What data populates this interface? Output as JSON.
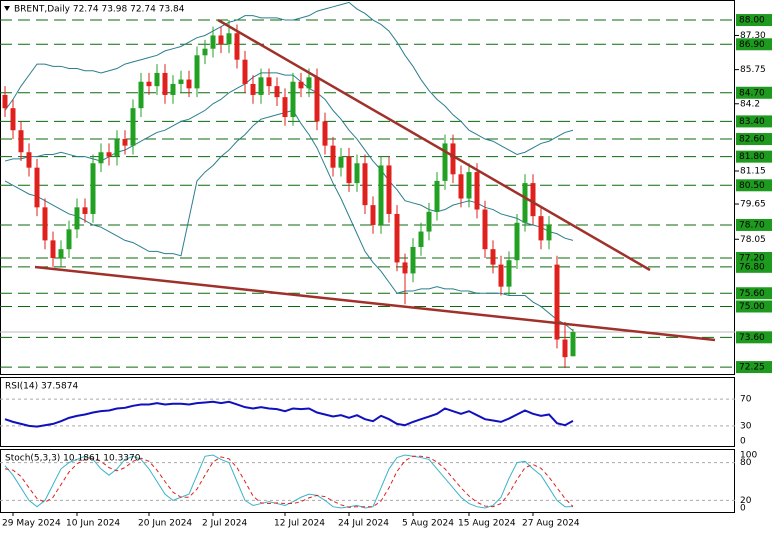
{
  "chart_data": [
    {
      "type": "candlestick",
      "title": "BRENT,Daily  72.74 73.98 72.74 73.84",
      "categories": [
        null,
        "29 May 2024",
        null,
        null,
        null,
        null,
        null,
        null,
        null,
        "10 Jun 2024",
        null,
        null,
        null,
        null,
        null,
        null,
        null,
        null,
        "20 Jun 2024",
        null,
        null,
        null,
        null,
        null,
        null,
        null,
        "2 Jul 2024",
        null,
        null,
        null,
        null,
        null,
        null,
        null,
        null,
        "12 Jul 2024",
        null,
        null,
        null,
        null,
        null,
        null,
        null,
        "24 Jul 2024",
        null,
        null,
        null,
        null,
        null,
        null,
        null,
        "5 Aug 2024",
        null,
        null,
        null,
        null,
        null,
        null,
        "15 Aug 2024",
        null,
        null,
        null,
        null,
        null,
        null,
        null,
        "27 Aug 2024",
        null,
        null,
        null,
        null,
        null
      ],
      "open": [
        84.6,
        84.0,
        83.0,
        82.0,
        81.3,
        79.5,
        78.0,
        77.2,
        77.6,
        78.5,
        79.5,
        79.2,
        81.5,
        82.0,
        81.8,
        82.6,
        82.3,
        84.0,
        85.2,
        85.0,
        85.6,
        84.6,
        85.1,
        85.3,
        84.9,
        86.4,
        86.7,
        87.3,
        86.9,
        87.4,
        86.2,
        85.1,
        84.6,
        85.4,
        85.0,
        84.5,
        83.6,
        85.2,
        84.9,
        85.4,
        83.4,
        82.3,
        81.3,
        81.8,
        80.6,
        81.5,
        79.6,
        78.7,
        81.4,
        79.2,
        77.0,
        76.5,
        77.7,
        78.4,
        79.3,
        80.7,
        82.4,
        81.0,
        79.9,
        81.1,
        79.4,
        77.6,
        76.9,
        75.9,
        77.1,
        78.8,
        80.6,
        79.1,
        78.0,
        76.9,
        73.5,
        72.74
      ],
      "high": [
        85.0,
        84.4,
        83.4,
        82.4,
        81.7,
        79.9,
        78.4,
        78.0,
        78.9,
        79.9,
        79.9,
        81.9,
        82.4,
        82.4,
        83.0,
        83.0,
        84.4,
        85.6,
        85.6,
        86.0,
        86.0,
        85.5,
        85.7,
        85.7,
        86.8,
        87.1,
        87.7,
        87.7,
        88.0,
        87.8,
        86.6,
        85.5,
        85.8,
        85.8,
        85.4,
        84.9,
        85.6,
        85.6,
        85.8,
        85.8,
        83.8,
        82.7,
        82.2,
        82.2,
        81.9,
        81.9,
        80.0,
        81.8,
        81.8,
        79.6,
        77.4,
        78.1,
        78.8,
        79.7,
        81.1,
        82.8,
        82.8,
        81.4,
        81.5,
        81.5,
        79.8,
        78.0,
        77.3,
        77.5,
        79.2,
        81.0,
        81.0,
        79.5,
        79.1,
        77.3,
        74.3,
        73.98
      ],
      "low": [
        83.6,
        82.6,
        81.6,
        80.9,
        79.1,
        77.6,
        76.8,
        76.8,
        77.2,
        78.1,
        78.8,
        78.8,
        81.1,
        81.4,
        81.4,
        81.9,
        81.9,
        83.6,
        84.6,
        84.6,
        84.2,
        84.2,
        84.7,
        84.5,
        84.5,
        86.0,
        86.3,
        86.5,
        86.5,
        85.8,
        84.7,
        84.2,
        84.2,
        84.6,
        84.1,
        83.2,
        83.2,
        84.5,
        84.5,
        83.0,
        81.9,
        80.9,
        80.9,
        80.2,
        80.2,
        79.2,
        78.3,
        78.3,
        78.8,
        76.6,
        75.1,
        76.1,
        77.3,
        78.0,
        78.9,
        80.3,
        80.6,
        79.5,
        79.5,
        79.0,
        77.2,
        76.5,
        75.5,
        75.5,
        76.7,
        78.4,
        78.7,
        77.6,
        77.6,
        73.1,
        72.2,
        72.74
      ],
      "close": [
        84.0,
        83.0,
        82.0,
        81.3,
        79.5,
        78.0,
        77.2,
        77.6,
        78.5,
        79.5,
        79.2,
        81.5,
        82.0,
        81.8,
        82.6,
        82.3,
        84.0,
        85.2,
        85.0,
        85.6,
        84.6,
        85.1,
        85.3,
        84.9,
        86.4,
        86.7,
        87.3,
        86.9,
        87.4,
        86.2,
        85.1,
        84.6,
        85.4,
        85.0,
        84.5,
        83.6,
        85.2,
        84.9,
        85.4,
        83.4,
        82.3,
        81.3,
        81.8,
        80.6,
        81.5,
        79.6,
        78.7,
        81.4,
        79.2,
        77.0,
        76.5,
        77.7,
        78.4,
        79.3,
        80.7,
        82.4,
        81.0,
        79.9,
        81.1,
        79.4,
        77.6,
        76.9,
        75.9,
        77.1,
        78.8,
        80.6,
        79.1,
        78.0,
        78.7,
        73.5,
        72.7,
        73.84
      ],
      "up_color": "#22a022",
      "down_color": "#e0201c",
      "bands": [
        {
          "color": "#2b7f8e",
          "values": [
            83.9,
            84.4,
            85.0,
            85.5,
            86.0,
            86.0,
            85.9,
            85.9,
            85.8,
            85.8,
            85.7,
            85.7,
            85.6,
            85.7,
            85.8,
            86.0,
            86.1,
            86.2,
            86.3,
            86.4,
            86.6,
            86.7,
            86.8,
            87.0,
            87.2,
            87.3,
            87.5,
            87.7,
            87.9,
            88.0,
            88.2,
            88.2,
            88.1,
            88.1,
            88.1,
            88.0,
            88.0,
            88.1,
            88.2,
            88.4,
            88.5,
            88.6,
            88.7,
            88.8,
            88.5,
            88.3,
            88.0,
            87.8,
            87.5,
            87.0,
            86.4,
            85.9,
            85.3,
            84.8,
            84.4,
            84.1,
            83.7,
            83.4,
            83.0,
            82.8,
            82.6,
            82.5,
            82.3,
            82.1,
            81.9,
            82.0,
            82.2,
            82.4,
            82.5,
            82.7,
            82.9,
            83.0
          ]
        },
        {
          "color": "#2b7f8e",
          "values": [
            81.6,
            81.7,
            81.7,
            81.8,
            81.8,
            81.9,
            81.9,
            82.0,
            81.9,
            81.8,
            81.8,
            81.7,
            81.6,
            81.8,
            82.0,
            82.1,
            82.3,
            82.5,
            82.7,
            82.9,
            83.0,
            83.2,
            83.4,
            83.5,
            83.7,
            83.9,
            84.2,
            84.4,
            84.7,
            84.9,
            85.1,
            85.4,
            85.6,
            85.6,
            85.6,
            85.5,
            85.5,
            85.2,
            84.9,
            84.7,
            84.4,
            83.9,
            83.5,
            83.0,
            82.6,
            82.1,
            81.6,
            81.2,
            80.7,
            80.3,
            79.8,
            79.7,
            79.6,
            79.4,
            79.3,
            79.4,
            79.6,
            79.7,
            79.8,
            79.7,
            79.5,
            79.4,
            79.2,
            79.1,
            79.0,
            78.8,
            78.7,
            78.6,
            78.4,
            78.3,
            78.1,
            78.0
          ]
        },
        {
          "color": "#2b7f8e",
          "values": [
            80.7,
            80.5,
            80.3,
            80.1,
            80.0,
            79.8,
            79.6,
            79.4,
            79.2,
            79.1,
            78.9,
            78.7,
            78.6,
            78.4,
            78.2,
            78.0,
            77.9,
            77.7,
            77.5,
            77.5,
            77.4,
            77.4,
            77.3,
            79.0,
            80.7,
            81.1,
            81.4,
            81.8,
            82.1,
            82.5,
            82.8,
            83.2,
            83.5,
            83.6,
            83.7,
            83.8,
            83.9,
            83.3,
            82.8,
            82.2,
            81.4,
            80.6,
            79.9,
            79.1,
            78.3,
            77.5,
            77.0,
            76.6,
            76.1,
            75.6,
            75.7,
            75.7,
            75.8,
            75.8,
            75.9,
            75.8,
            75.8,
            75.7,
            75.7,
            75.6,
            75.6,
            75.6,
            75.6,
            75.5,
            75.5,
            75.5,
            75.2,
            75.0,
            74.7,
            74.4,
            74.2,
            73.9
          ]
        }
      ],
      "ylim": [
        71.89,
        88.91
      ],
      "yticks": [
        {
          "value": 87.3,
          "label": "87.30"
        },
        85.75,
        84.2,
        81.15,
        79.65,
        78.05
      ],
      "levels": [
        {
          "value": 88,
          "label": "88.00"
        },
        {
          "value": 86.9,
          "label": "86.90"
        },
        {
          "value": 84.7,
          "label": "84.70"
        },
        {
          "value": 83.4,
          "label": "83.40"
        },
        {
          "value": 82.6,
          "label": "82.60"
        },
        {
          "value": 81.8,
          "label": "81.80"
        },
        {
          "value": 80.5,
          "label": "80.50"
        },
        {
          "value": 78.7,
          "label": "78.70"
        },
        {
          "value": 77.2,
          "label": "77.20"
        },
        {
          "value": 76.8,
          "label": "76.80"
        },
        {
          "value": 75.6,
          "label": "75.60"
        },
        {
          "value": 75,
          "label": "75.00"
        },
        {
          "value": 73.6,
          "label": "73.60"
        },
        72.25
      ],
      "level_color": "#0b6a0b"
    },
    {
      "type": "line",
      "title": "RSI(14) 37.5874",
      "color": "#1010c0",
      "values": [
        40,
        36,
        33,
        30,
        29,
        31,
        33,
        37,
        42,
        45,
        47,
        50,
        52,
        53,
        56,
        57,
        60,
        62,
        62,
        64,
        62,
        63,
        63,
        62,
        64,
        65,
        66,
        64,
        66,
        62,
        58,
        56,
        58,
        56,
        55,
        52,
        56,
        55,
        56,
        50,
        47,
        44,
        46,
        42,
        46,
        40,
        37,
        45,
        40,
        33,
        31,
        36,
        40,
        44,
        48,
        56,
        52,
        48,
        52,
        46,
        40,
        38,
        36,
        41,
        47,
        53,
        48,
        45,
        47,
        34,
        31,
        37.59
      ],
      "ylim": [
        0,
        100
      ],
      "yticks": [
        70,
        30,
        0
      ]
    },
    {
      "type": "line",
      "title": "Stoch(5,3,3) 10.1861 10.3370",
      "series": [
        {
          "color": "#3cb4c8",
          "values": [
            75,
            60,
            40,
            20,
            10,
            20,
            45,
            70,
            80,
            85,
            90,
            85,
            70,
            60,
            70,
            85,
            90,
            85,
            70,
            50,
            30,
            20,
            25,
            30,
            60,
            90,
            92,
            85,
            80,
            50,
            20,
            12,
            15,
            18,
            15,
            12,
            18,
            25,
            30,
            28,
            20,
            10,
            8,
            10,
            12,
            8,
            10,
            40,
            70,
            88,
            92,
            90,
            88,
            85,
            70,
            55,
            40,
            25,
            15,
            10,
            8,
            12,
            25,
            55,
            80,
            82,
            70,
            60,
            40,
            20,
            10,
            10.19
          ]
        },
        {
          "color": "#e02020",
          "values": [
            70,
            68,
            58,
            40,
            23,
            17,
            25,
            45,
            65,
            78,
            85,
            87,
            82,
            72,
            67,
            72,
            82,
            87,
            82,
            68,
            50,
            33,
            25,
            25,
            38,
            60,
            81,
            89,
            86,
            72,
            50,
            27,
            16,
            15,
            16,
            15,
            15,
            18,
            24,
            28,
            26,
            19,
            13,
            9,
            10,
            10,
            10,
            19,
            40,
            66,
            83,
            90,
            90,
            88,
            81,
            70,
            55,
            40,
            27,
            17,
            11,
            10,
            15,
            31,
            53,
            72,
            77,
            71,
            57,
            40,
            23,
            10.34
          ]
        }
      ],
      "ylim": [
        0,
        100
      ],
      "yticks": [
        100,
        80,
        20,
        0
      ]
    }
  ]
}
